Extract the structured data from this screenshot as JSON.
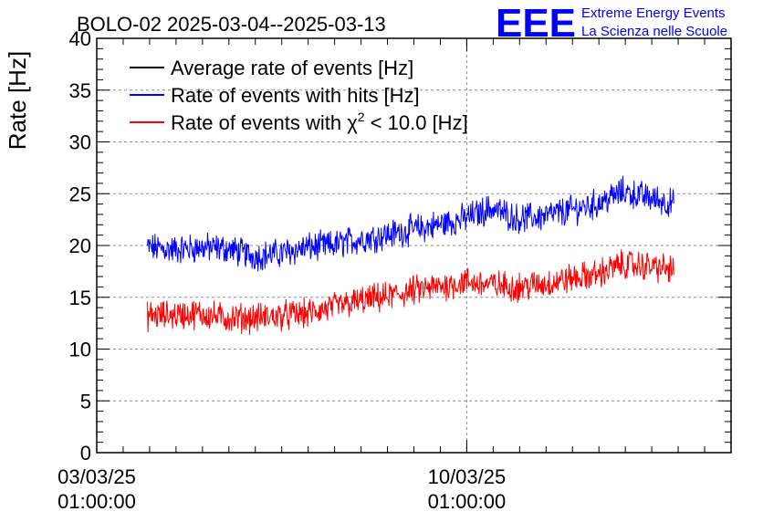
{
  "chart_data": {
    "type": "line",
    "title": "BOLO-02 2025-03-04--2025-03-13",
    "ylabel": "Rate [Hz]",
    "xlabel": "",
    "ylim": [
      0,
      40
    ],
    "y_ticks": [
      "0",
      "5",
      "10",
      "15",
      "20",
      "25",
      "30",
      "35",
      "40"
    ],
    "x_range": [
      "2025-03-03 01:00:00",
      "2025-03-15 01:00:00"
    ],
    "x_ticks": [
      {
        "x": "2025-03-03 01:00:00",
        "label_line1": "03/03/25",
        "label_line2": "01:00:00"
      },
      {
        "x": "2025-03-10 01:00:00",
        "label_line1": "10/03/25",
        "label_line2": "01:00:00"
      }
    ],
    "grid": true,
    "legend_position": "top-left",
    "series": [
      {
        "name": "Average rate of events [Hz]",
        "color": "#000000",
        "x": [],
        "y": []
      },
      {
        "name": "Rate of events with hits [Hz]",
        "color": "#0000ff",
        "x": [
          "2025-03-04 00:00",
          "2025-03-04 12:00",
          "2025-03-05 00:00",
          "2025-03-05 12:00",
          "2025-03-06 00:00",
          "2025-03-06 12:00",
          "2025-03-07 00:00",
          "2025-03-07 12:00",
          "2025-03-08 00:00",
          "2025-03-08 12:00",
          "2025-03-09 00:00",
          "2025-03-09 12:00",
          "2025-03-10 00:00",
          "2025-03-10 12:00",
          "2025-03-11 00:00",
          "2025-03-11 12:00",
          "2025-03-12 00:00",
          "2025-03-12 12:00",
          "2025-03-13 00:00",
          "2025-03-13 12:00",
          "2025-03-13 23:00"
        ],
        "y": [
          19.8,
          19.6,
          19.8,
          19.7,
          19.0,
          19.2,
          19.8,
          20.0,
          20.6,
          21.0,
          21.5,
          22.0,
          22.6,
          23.6,
          22.6,
          22.8,
          23.4,
          24.0,
          25.2,
          24.6,
          24.0
        ]
      },
      {
        "name": "Rate of events with χ² < 10.0 [Hz]",
        "color": "#ff0000",
        "x": [
          "2025-03-04 00:00",
          "2025-03-04 12:00",
          "2025-03-05 00:00",
          "2025-03-05 12:00",
          "2025-03-06 00:00",
          "2025-03-06 12:00",
          "2025-03-07 00:00",
          "2025-03-07 12:00",
          "2025-03-08 00:00",
          "2025-03-08 12:00",
          "2025-03-09 00:00",
          "2025-03-09 12:00",
          "2025-03-10 00:00",
          "2025-03-10 12:00",
          "2025-03-11 00:00",
          "2025-03-11 12:00",
          "2025-03-12 00:00",
          "2025-03-12 12:00",
          "2025-03-13 00:00",
          "2025-03-13 12:00",
          "2025-03-13 23:00"
        ],
        "y": [
          13.2,
          13.3,
          13.4,
          13.0,
          13.0,
          13.2,
          13.4,
          14.0,
          14.6,
          15.0,
          15.6,
          16.0,
          16.5,
          16.2,
          16.0,
          16.3,
          16.8,
          17.2,
          18.2,
          18.0,
          17.6
        ]
      }
    ]
  },
  "branding": {
    "logo_text": "EEE",
    "line1": "Extreme Energy Events",
    "line2": "La Scienza nelle Scuole",
    "color": "#0000ff"
  }
}
